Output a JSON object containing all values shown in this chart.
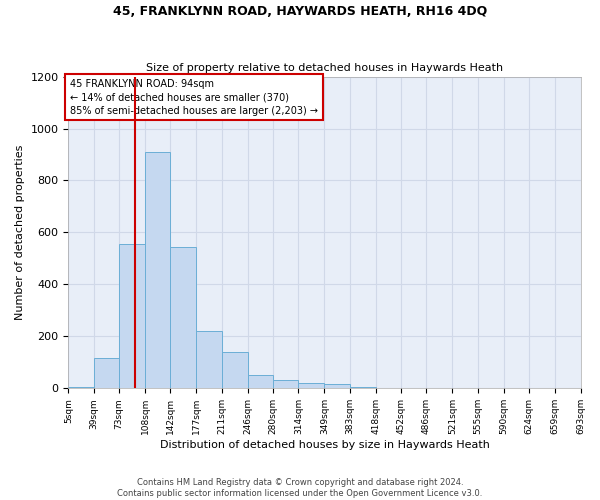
{
  "title1": "45, FRANKLYNN ROAD, HAYWARDS HEATH, RH16 4DQ",
  "title2": "Size of property relative to detached houses in Haywards Heath",
  "xlabel": "Distribution of detached houses by size in Haywards Heath",
  "ylabel": "Number of detached properties",
  "footer1": "Contains HM Land Registry data © Crown copyright and database right 2024.",
  "footer2": "Contains public sector information licensed under the Open Government Licence v3.0.",
  "bar_color": "#c5d8f0",
  "bar_edgecolor": "#6baed6",
  "grid_color": "#d0d8e8",
  "background_color": "#e8eef8",
  "annotation_box_color": "#cc0000",
  "vline_color": "#cc0000",
  "bin_edges": [
    5,
    39,
    73,
    108,
    142,
    177,
    211,
    246,
    280,
    314,
    349,
    383,
    418,
    452,
    486,
    521,
    555,
    590,
    624,
    659,
    693
  ],
  "bar_heights": [
    7,
    115,
    555,
    910,
    545,
    220,
    140,
    52,
    33,
    20,
    18,
    7,
    0,
    0,
    0,
    0,
    0,
    0,
    0,
    0
  ],
  "vline_x": 94,
  "annotation_text": "45 FRANKLYNN ROAD: 94sqm\n← 14% of detached houses are smaller (370)\n85% of semi-detached houses are larger (2,203) →",
  "ylim": [
    0,
    1200
  ],
  "yticks": [
    0,
    200,
    400,
    600,
    800,
    1000,
    1200
  ]
}
